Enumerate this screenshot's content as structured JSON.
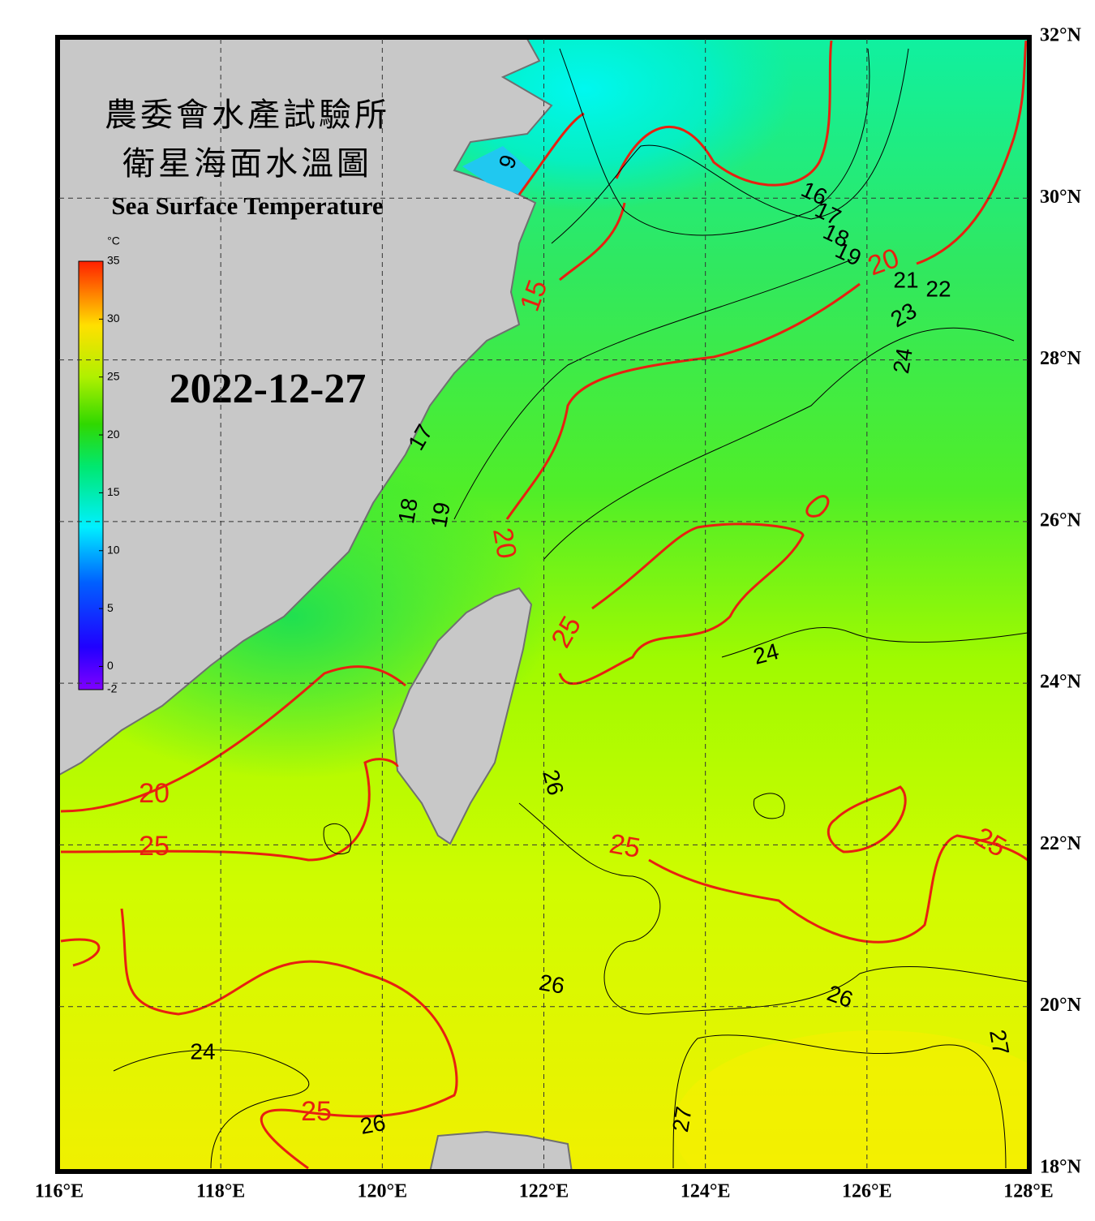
{
  "map": {
    "title_lines": [
      "農委會水產試驗所",
      "衛星海面水溫圖"
    ],
    "subtitle": "Sea Surface Temperature",
    "date": "2022-12-27",
    "xlim": [
      116,
      128
    ],
    "ylim": [
      18,
      32
    ],
    "xticks": [
      {
        "value": 116,
        "label": "116°E"
      },
      {
        "value": 118,
        "label": "118°E"
      },
      {
        "value": 120,
        "label": "120°E"
      },
      {
        "value": 122,
        "label": "122°E"
      },
      {
        "value": 124,
        "label": "124°E"
      },
      {
        "value": 126,
        "label": "126°E"
      },
      {
        "value": 128,
        "label": "128°E"
      }
    ],
    "yticks": [
      {
        "value": 32,
        "label": "32°N"
      },
      {
        "value": 30,
        "label": "30°N"
      },
      {
        "value": 28,
        "label": "28°N"
      },
      {
        "value": 26,
        "label": "26°N"
      },
      {
        "value": 24,
        "label": "24°N"
      },
      {
        "value": 22,
        "label": "22°N"
      },
      {
        "value": 20,
        "label": "20°N"
      },
      {
        "value": 18,
        "label": "18°N"
      }
    ],
    "grid": true,
    "colorbar": {
      "unit": "°C",
      "range": [
        -2,
        35
      ],
      "ticks": [
        35,
        30,
        25,
        20,
        15,
        10,
        5,
        0,
        -2
      ]
    },
    "contour_labels": [
      9,
      16,
      17,
      18,
      19,
      21,
      22,
      23,
      24,
      17,
      18,
      19,
      24,
      26,
      26,
      26,
      27,
      24,
      26,
      27
    ],
    "major_contour_labels": [
      20,
      15,
      20,
      25,
      25,
      25,
      20,
      25,
      25
    ]
  }
}
